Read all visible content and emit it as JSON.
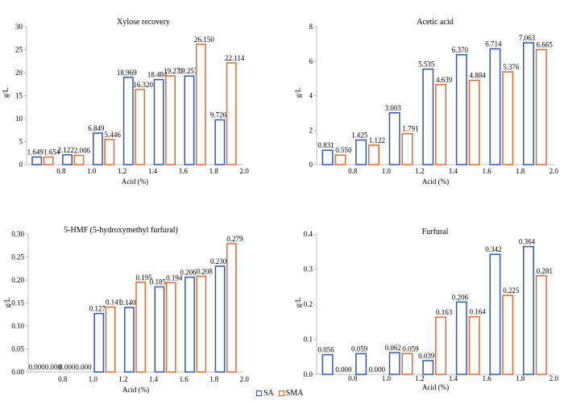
{
  "colors": {
    "SA": "#2f56b8",
    "SMA": "#e8682a",
    "axis": "#bdbdbd"
  },
  "legend": {
    "sa_label": "SA",
    "sma_label": "SMA"
  },
  "chart_data": [
    {
      "type": "bar",
      "title": "Xylose recovery",
      "ylabel": "g/L",
      "xlabel": "Acid (%)",
      "categories": [
        "0.8",
        "1.0",
        "1.2",
        "1.4",
        "1.6",
        "1.8",
        "2.0"
      ],
      "ylim": [
        0,
        30
      ],
      "yticks": [
        "0",
        "5",
        "10",
        "15",
        "20",
        "25",
        "30"
      ],
      "series": [
        {
          "name": "SA",
          "values": [
            1.649,
            2.122,
            6.849,
            18.969,
            18.484,
            19.257,
            9.726
          ],
          "labels": [
            "1.649",
            "2.122",
            "6.849",
            "18.969",
            "18.484",
            "19.257",
            "9.726"
          ]
        },
        {
          "name": "SMA",
          "values": [
            1.654,
            2.006,
            5.446,
            16.32,
            19.271,
            26.15,
            22.114
          ],
          "labels": [
            "1.654",
            "2.006",
            "5.446",
            "16.320",
            "19.271",
            "26.150",
            "22.114"
          ]
        }
      ]
    },
    {
      "type": "bar",
      "title": "Acetic acid",
      "ylabel": "g/L",
      "xlabel": "Acid (%)",
      "categories": [
        "0.8",
        "1.0",
        "1.2",
        "1.4",
        "1.6",
        "1.8",
        "2.0"
      ],
      "ylim": [
        0,
        8
      ],
      "yticks": [
        "0",
        "2",
        "4",
        "6",
        "8"
      ],
      "series": [
        {
          "name": "SA",
          "values": [
            0.831,
            1.425,
            3.003,
            5.535,
            6.37,
            6.714,
            7.063
          ],
          "labels": [
            "0.831",
            "1.425",
            "3.003",
            "5.535",
            "6.370",
            "6.714",
            "7.063"
          ]
        },
        {
          "name": "SMA",
          "values": [
            0.55,
            1.122,
            1.791,
            4.639,
            4.884,
            5.376,
            6.665
          ],
          "labels": [
            "0.550",
            "1.122",
            "1.791",
            "4.639",
            "4.884",
            "5.376",
            "6.665"
          ]
        }
      ]
    },
    {
      "type": "bar",
      "title": "5-HMF (5-hydroxymethyl furfural)",
      "ylabel": "g/L",
      "xlabel": "Acid (%)",
      "categories": [
        "0.8",
        "1.0",
        "1.2",
        "1.4",
        "1.6",
        "1.8",
        "2.0"
      ],
      "ylim": [
        0,
        0.3
      ],
      "yticks": [
        "0.00",
        "0.05",
        "0.10",
        "0.15",
        "0.20",
        "0.25",
        "0.30"
      ],
      "series": [
        {
          "name": "SA",
          "values": [
            0.0,
            0.0,
            0.127,
            0.14,
            0.185,
            0.206,
            0.23
          ],
          "labels": [
            "0.000",
            "0.000",
            "0.127",
            "0.140",
            "0.185",
            "0.206",
            "0.230"
          ]
        },
        {
          "name": "SMA",
          "values": [
            0.0,
            0.0,
            0.141,
            0.195,
            0.194,
            0.208,
            0.279
          ],
          "labels": [
            "0.000",
            "0.000",
            "0.141",
            "0.195",
            "0.194",
            "0.208",
            "0.279"
          ]
        }
      ]
    },
    {
      "type": "bar",
      "title": "Furfural",
      "ylabel": "g/L",
      "xlabel": "Acid (%)",
      "categories": [
        "0.8",
        "1.0",
        "1.2",
        "1.4",
        "1.6",
        "1.8",
        "2.0"
      ],
      "ylim": [
        0,
        0.4
      ],
      "yticks": [
        "0.0",
        "0.1",
        "0.2",
        "0.3",
        "0.4"
      ],
      "series": [
        {
          "name": "SA",
          "values": [
            0.056,
            0.059,
            0.062,
            0.039,
            0.206,
            0.342,
            0.364
          ],
          "labels": [
            "0.056",
            "0.059",
            "0.062",
            "0.039",
            "0.206",
            "0.342",
            "0.364"
          ]
        },
        {
          "name": "SMA",
          "values": [
            0.0,
            0.0,
            0.059,
            0.163,
            0.164,
            0.225,
            0.281
          ],
          "labels": [
            "0.000",
            "0.000",
            "0.059",
            "0.163",
            "0.164",
            "0.225",
            "0.281"
          ]
        }
      ]
    }
  ]
}
